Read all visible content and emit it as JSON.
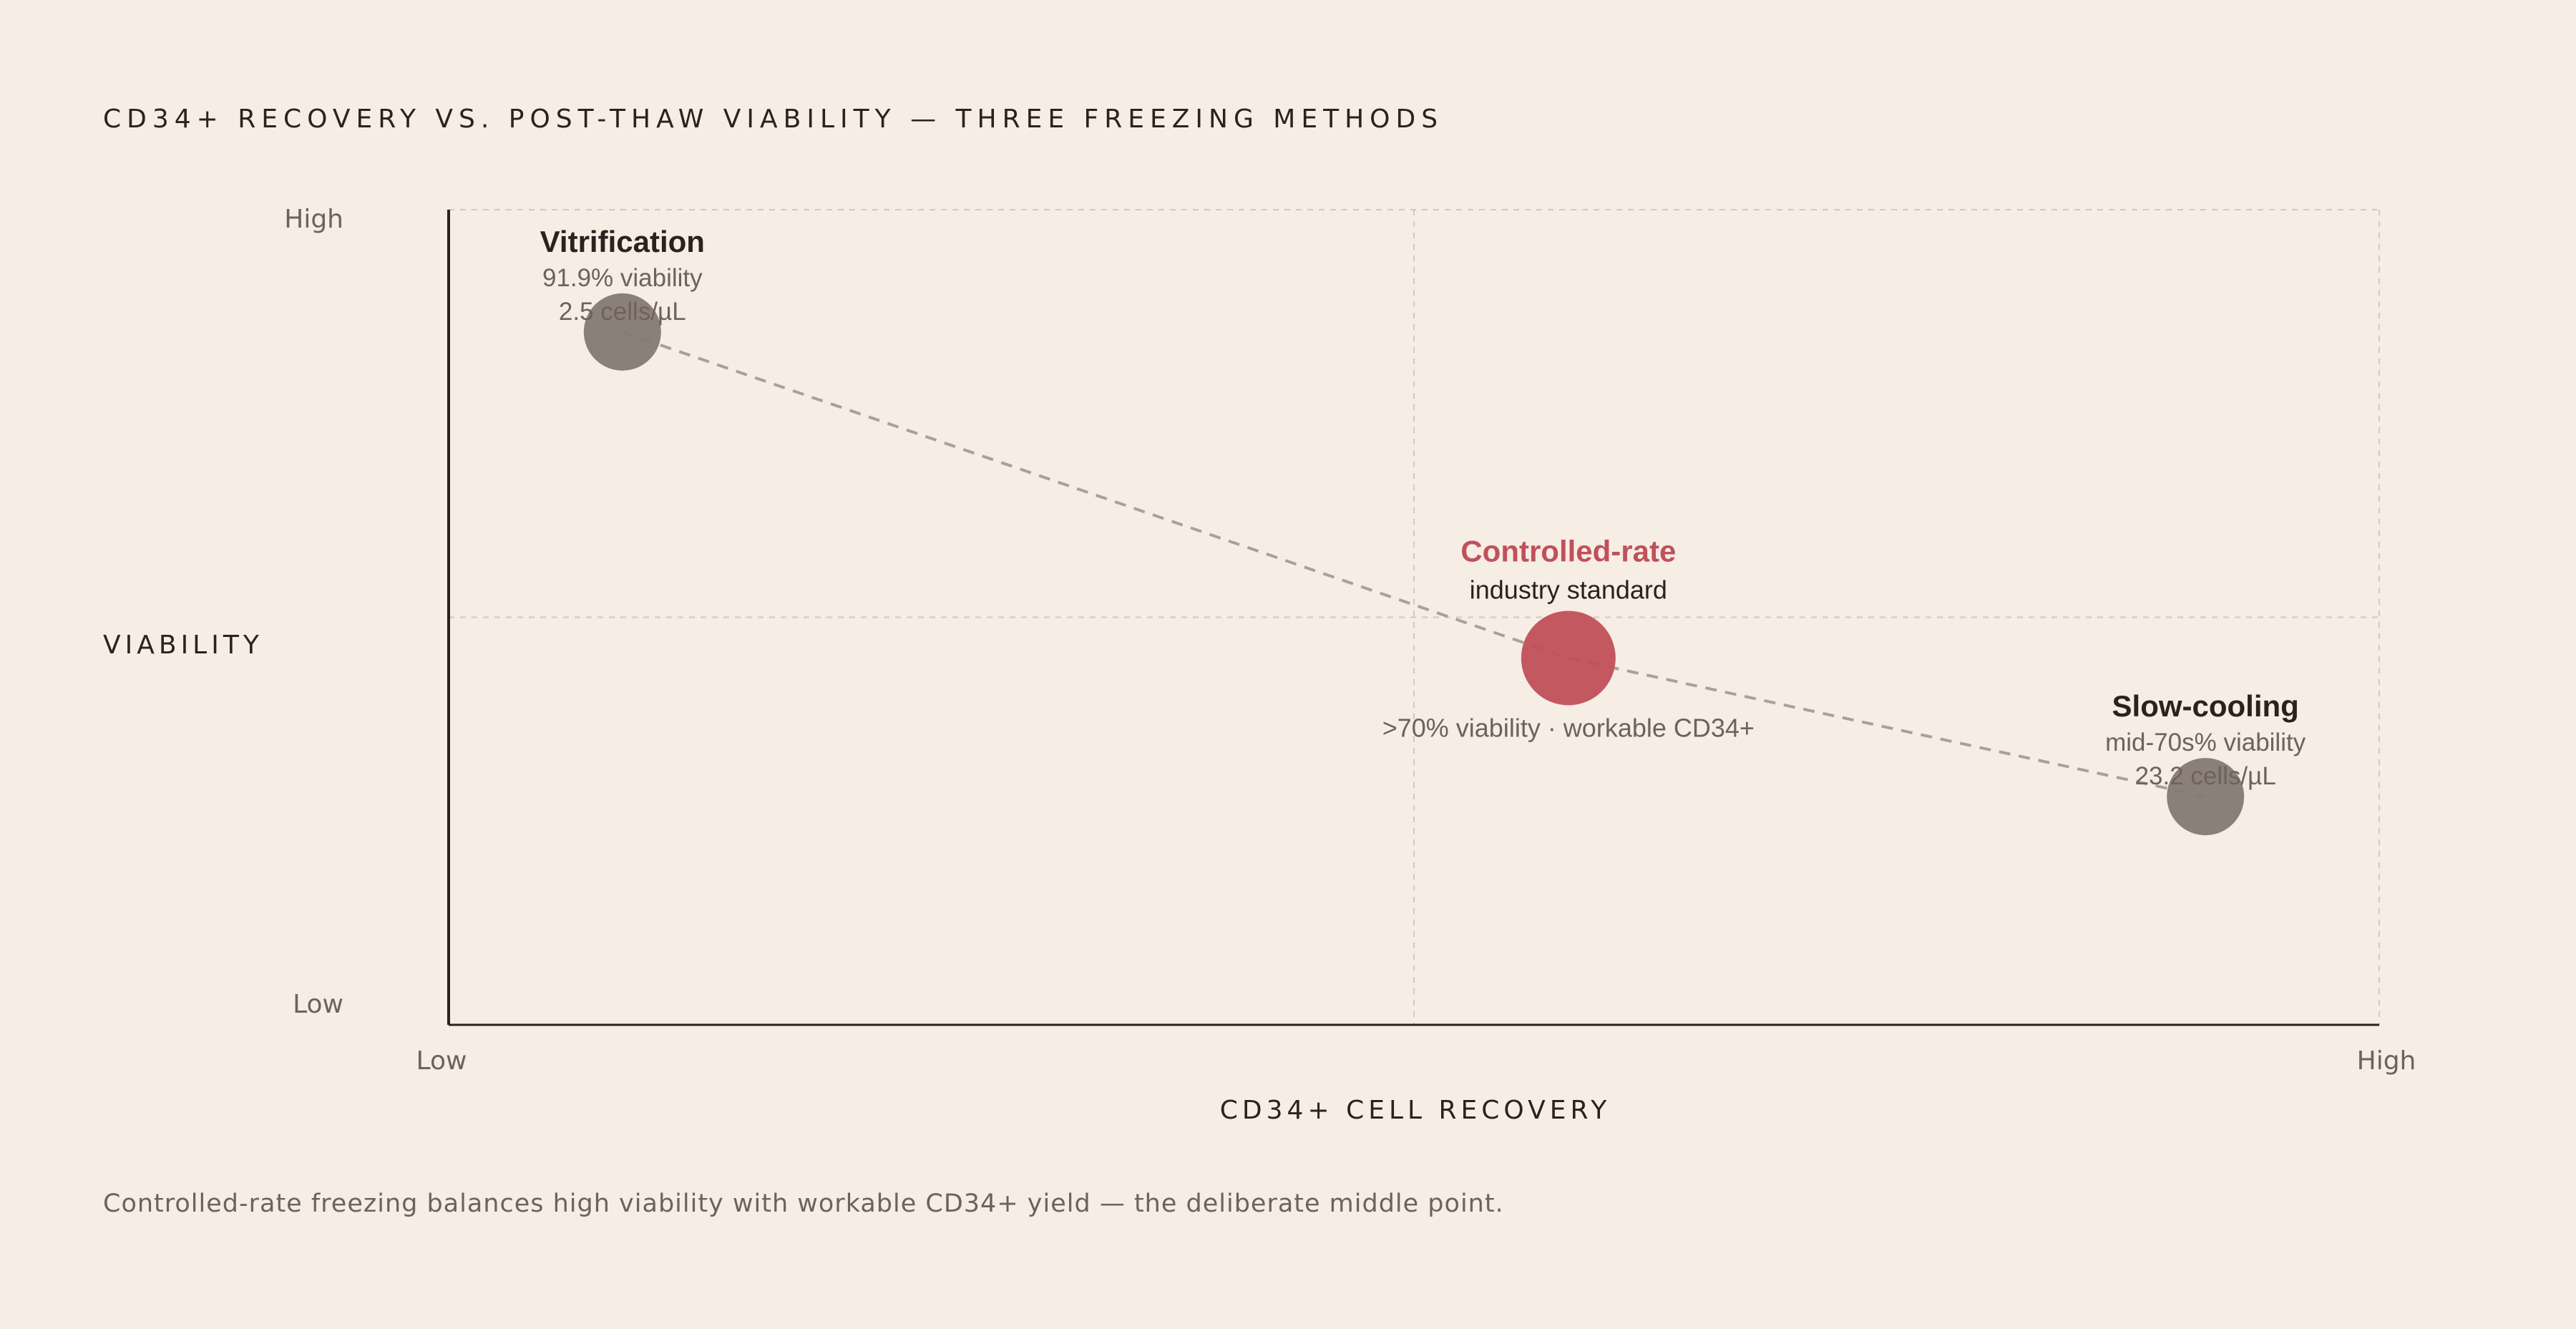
{
  "chart_data": {
    "type": "scatter",
    "title": "CD34+ RECOVERY VS. POST-THAW VIABILITY — THREE FREEZING METHODS",
    "xlabel": "CD34+ CELL RECOVERY",
    "ylabel": "VIABILITY",
    "x_ticks": [
      "Low",
      "High"
    ],
    "y_ticks": [
      "High",
      "Low"
    ],
    "xlim": [
      0,
      1
    ],
    "ylim": [
      0,
      1
    ],
    "grid": true,
    "connector": "dashed",
    "points": [
      {
        "name": "Vitrification",
        "x": 0.09,
        "y": 0.85,
        "line1": "91.9% viability",
        "line2": "2.5 cells/µL",
        "color": "#857a73",
        "highlight": false
      },
      {
        "name": "Controlled-rate",
        "x": 0.58,
        "y": 0.45,
        "tag": "industry standard",
        "line1": ">70% viability · workable CD34+",
        "color": "#c0505a",
        "highlight": true
      },
      {
        "name": "Slow-cooling",
        "x": 0.91,
        "y": 0.28,
        "line1": "mid-70s% viability",
        "line2": "23.2 cells/µL",
        "color": "#857a73",
        "highlight": false
      }
    ]
  },
  "caption": "Controlled-rate freezing balances high viability with workable CD34+ yield — the deliberate middle point.",
  "colors": {
    "background": "#f6ede4",
    "axis": "#2b2220",
    "grid": "#d4c8bf",
    "muted_text": "#6e625b",
    "accent": "#c0505a"
  }
}
